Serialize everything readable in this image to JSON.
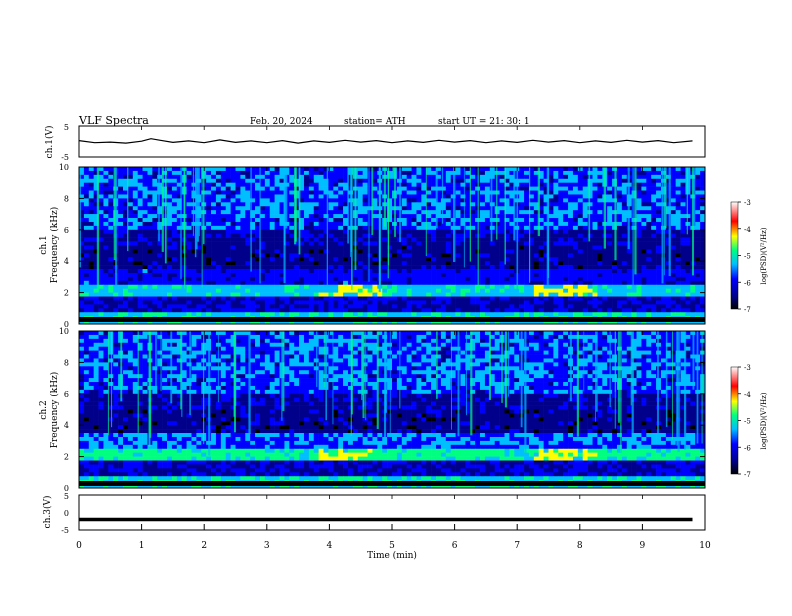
{
  "header": {
    "title": "VLF  Spectra",
    "date": "Feb. 20, 2024",
    "station": "station= ATH",
    "start": "start  UT  =    21: 30: 1"
  },
  "colors": {
    "frame": "#000000",
    "background": "#ffffff",
    "colormap": [
      "#000000",
      "#00008b",
      "#0000ff",
      "#00bfff",
      "#00ff7f",
      "#ffff00",
      "#ff0000",
      "#ffffff"
    ]
  },
  "chart_data": [
    {
      "type": "line",
      "panel": "ch1-timeseries",
      "ylabel": "ch.1(V)",
      "ylim": [
        -5,
        5
      ],
      "yticks": [
        "5",
        "-5"
      ],
      "xlim": [
        0,
        10
      ],
      "series": [
        {
          "x": [
            0,
            0.25,
            0.5,
            0.75,
            1.0,
            1.15,
            1.3,
            1.5,
            1.75,
            2.0,
            2.25,
            2.5,
            2.75,
            3.0,
            3.25,
            3.5,
            3.75,
            4.0,
            4.25,
            4.5,
            4.75,
            5.0,
            5.25,
            5.5,
            5.75,
            6.0,
            6.25,
            6.5,
            6.75,
            7.0,
            7.25,
            7.5,
            7.75,
            8.0,
            8.25,
            8.5,
            8.75,
            9.0,
            9.25,
            9.5,
            9.8
          ],
          "values": [
            0.3,
            -0.4,
            -0.2,
            -0.5,
            0.1,
            0.9,
            0.4,
            -0.3,
            0.2,
            -0.4,
            0.5,
            -0.3,
            0.2,
            -0.4,
            0.3,
            -0.5,
            0.2,
            -0.3,
            0.4,
            -0.2,
            0.3,
            -0.4,
            0.2,
            -0.3,
            0.4,
            -0.2,
            0.3,
            -0.4,
            0.2,
            -0.3,
            0.4,
            -0.2,
            0.3,
            -0.4,
            0.2,
            -0.3,
            0.4,
            -0.2,
            0.3,
            -0.4,
            0.2
          ]
        }
      ]
    },
    {
      "type": "heatmap",
      "panel": "ch1-spectrogram",
      "ylabel_channel": "ch.1",
      "ylabel": "Frequency  (kHz)",
      "ylim": [
        0,
        10
      ],
      "xlim": [
        0,
        10
      ],
      "yticks": [
        "0",
        "2",
        "4",
        "6",
        "8",
        "10"
      ],
      "colorbar": {
        "label": "log(PSD)(V²/Hz)",
        "ticks": [
          "-3",
          "-4",
          "-5",
          "-6",
          "-7"
        ],
        "range": [
          -7,
          -3
        ]
      }
    },
    {
      "type": "heatmap",
      "panel": "ch2-spectrogram",
      "ylabel_channel": "ch.2",
      "ylabel": "Frequency  (kHz)",
      "ylim": [
        0,
        10
      ],
      "xlim": [
        0,
        10
      ],
      "yticks": [
        "0",
        "2",
        "4",
        "6",
        "8",
        "10"
      ],
      "colorbar": {
        "label": "log(PSD)(V²/Hz)",
        "ticks": [
          "-3",
          "-4",
          "-5",
          "-6",
          "-7"
        ],
        "range": [
          -7,
          -3
        ]
      }
    },
    {
      "type": "line",
      "panel": "ch3-timeseries",
      "ylabel": "ch.3(V)",
      "ylim": [
        -5,
        5
      ],
      "yticks": [
        "5",
        "0",
        "-5"
      ],
      "xlim": [
        0,
        10
      ],
      "series": [
        {
          "x": [
            0,
            9.8
          ],
          "values": [
            -2,
            -2
          ]
        }
      ]
    }
  ],
  "xaxis": {
    "label": "Time  (min)",
    "ticks": [
      "0",
      "1",
      "2",
      "3",
      "4",
      "5",
      "6",
      "7",
      "8",
      "9",
      "10"
    ]
  }
}
